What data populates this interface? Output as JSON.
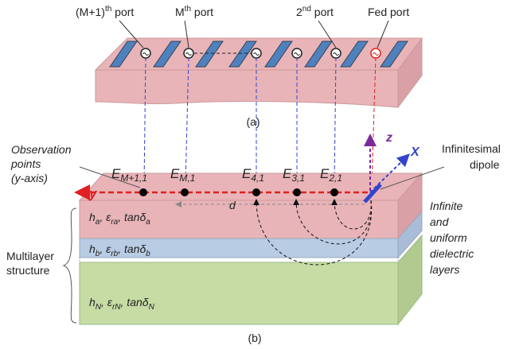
{
  "panel_a": {
    "caption": "(a)",
    "ports": [
      {
        "name": "(M+1)",
        "sup": "th",
        "suffix": " port"
      },
      {
        "name": "M",
        "sup": "th",
        "suffix": " port"
      },
      {
        "name": "2",
        "sup": "nd",
        "suffix": " port"
      },
      {
        "name": "Fed port"
      }
    ]
  },
  "panel_b": {
    "caption": "(b)",
    "axes": {
      "x": "X",
      "y": "y",
      "z": "z"
    },
    "distance": "d",
    "observation_label": [
      "Observation",
      "points",
      "(y-axis)"
    ],
    "dipole_label": [
      "Infinitesimal",
      "dipole"
    ],
    "fields": [
      {
        "symbol": "E",
        "sub": "M+1,1"
      },
      {
        "symbol": "E",
        "sub": "M,1"
      },
      {
        "symbol": "E",
        "sub": "4,1"
      },
      {
        "symbol": "E",
        "sub": "3,1"
      },
      {
        "symbol": "E",
        "sub": "2,1"
      }
    ],
    "layers": [
      [
        {
          "t": "h"
        },
        {
          "sub": "a"
        },
        {
          "t": ", ε"
        },
        {
          "sub": "ra"
        },
        {
          "t": ", tanδ"
        },
        {
          "sub": "a"
        }
      ],
      [
        {
          "t": "h"
        },
        {
          "sub": "b"
        },
        {
          "t": ", ε"
        },
        {
          "sub": "rb"
        },
        {
          "t": ", tanδ"
        },
        {
          "sub": "b"
        }
      ],
      [
        {
          "t": "h"
        },
        {
          "sub": "N"
        },
        {
          "t": ", ε"
        },
        {
          "sub": "rN"
        },
        {
          "t": ", tanδ"
        },
        {
          "sub": "N"
        }
      ]
    ],
    "layers_note": [
      "Infinite",
      "and",
      "uniform",
      "dielectric",
      "layers"
    ],
    "structure_label": [
      "Multilayer",
      "structure"
    ]
  }
}
